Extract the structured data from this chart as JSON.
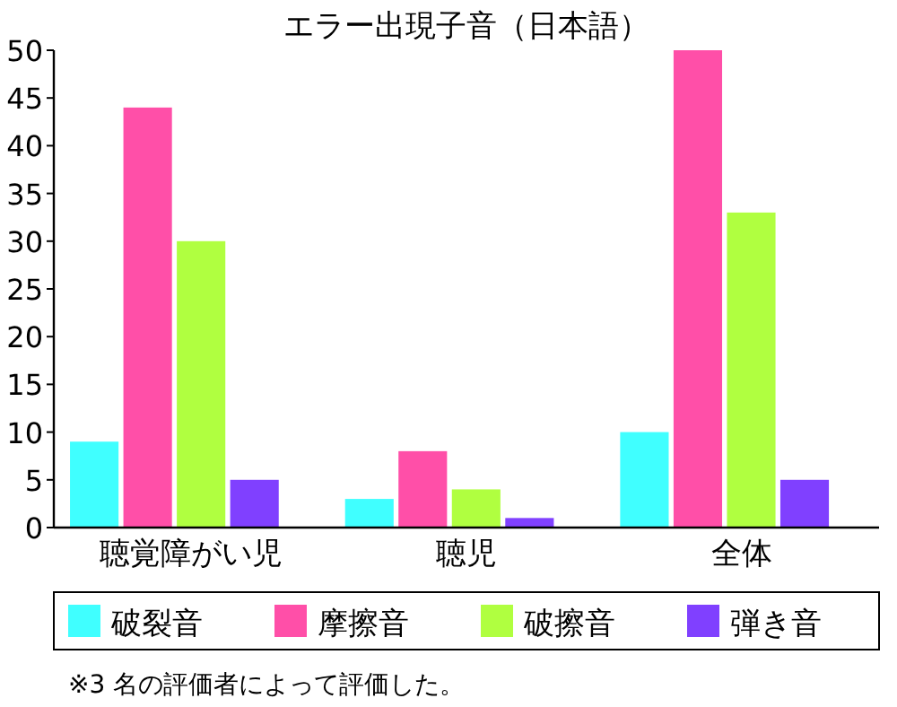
{
  "chart_data": {
    "type": "bar",
    "title": "エラー出現子音（日本語）",
    "categories": [
      "聴覚障がい児",
      "聴児",
      "全体"
    ],
    "series": [
      {
        "name": "破裂音",
        "color": "#40ffff",
        "values": [
          9,
          3,
          10
        ]
      },
      {
        "name": "摩擦音",
        "color": "#ff4fa8",
        "values": [
          44,
          8,
          50
        ]
      },
      {
        "name": "破擦音",
        "color": "#b0ff40",
        "values": [
          30,
          4,
          33
        ]
      },
      {
        "name": "弾き音",
        "color": "#8040ff",
        "values": [
          5,
          1,
          5
        ]
      }
    ],
    "ylim": [
      0,
      50
    ],
    "yticks": [
      0,
      5,
      10,
      15,
      20,
      25,
      30,
      35,
      40,
      45,
      50
    ],
    "grid": false,
    "legend": "bottom",
    "annotations": [
      "※3 名の評価者によって評価した。"
    ]
  }
}
